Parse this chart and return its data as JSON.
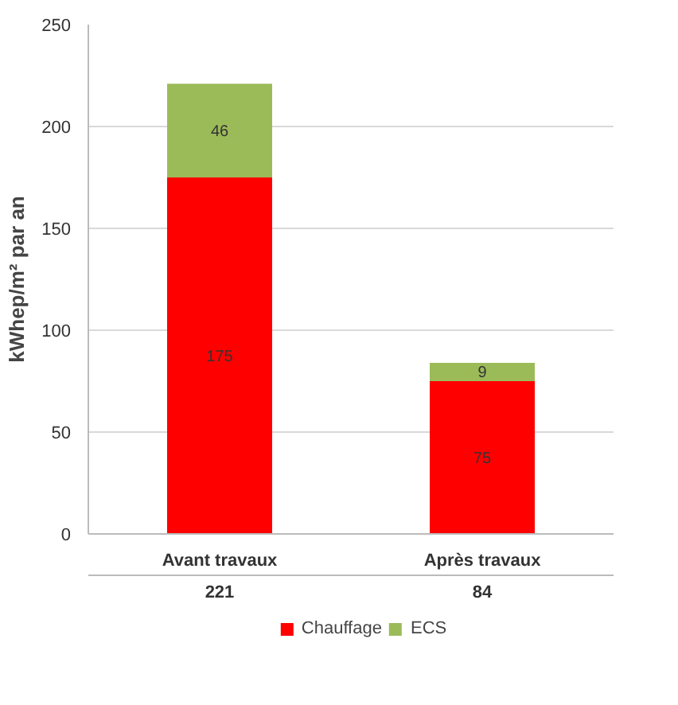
{
  "chart_data": {
    "type": "bar",
    "stacked": true,
    "categories": [
      "Avant travaux",
      "Après travaux"
    ],
    "totals": [
      "221",
      "84"
    ],
    "series": [
      {
        "name": "Chauffage",
        "color": "#ff0000",
        "values": [
          175,
          75
        ]
      },
      {
        "name": "ECS",
        "color": "#9bbb59",
        "values": [
          46,
          9
        ]
      }
    ],
    "ylabel": "kWhep/m² par an",
    "ylim": [
      0,
      250
    ],
    "yticks": [
      0,
      50,
      100,
      150,
      200,
      250
    ],
    "grid": "y",
    "legend": "bottom",
    "data_labels": true
  }
}
